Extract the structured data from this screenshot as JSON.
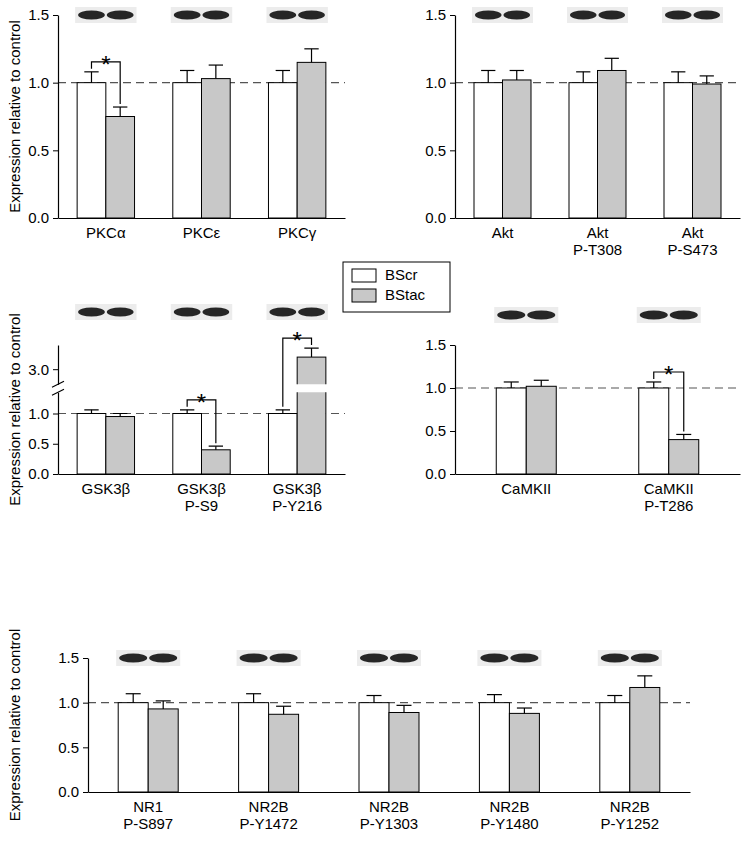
{
  "chart_data": [
    {
      "type": "bar",
      "y_label": "Expression relative to control",
      "categories": [
        "PKCα",
        "PKCε",
        "PKCγ"
      ],
      "series": [
        {
          "name": "BScr",
          "color": "#ffffff",
          "values": [
            1,
            1,
            1
          ],
          "errors": [
            0.08,
            0.09,
            0.09
          ]
        },
        {
          "name": "BStac",
          "color": "#c8c8c8",
          "values": [
            0.75,
            1.03,
            1.15
          ],
          "errors": [
            0.07,
            0.1,
            0.1
          ]
        }
      ],
      "ylim": [
        0,
        1.5
      ],
      "yticks": [
        {
          "value": 0,
          "label": "0.0"
        },
        {
          "value": 0.5,
          "label": "0.5"
        },
        {
          "value": 1,
          "label": "1.0"
        },
        {
          "value": 1.5,
          "label": "1.5"
        }
      ],
      "reference": 1,
      "significance": [
        {
          "category": 0,
          "label": "*"
        }
      ],
      "legend": "center"
    },
    {
      "type": "bar",
      "categories": [
        "Akt",
        "Akt\nP-T308",
        "Akt\nP-S473"
      ],
      "series": [
        {
          "name": "BScr",
          "color": "#ffffff",
          "values": [
            1,
            1,
            1
          ],
          "errors": [
            0.09,
            0.08,
            0.08
          ]
        },
        {
          "name": "BStac",
          "color": "#c8c8c8",
          "values": [
            1.02,
            1.09,
            0.99
          ],
          "errors": [
            0.07,
            0.09,
            0.06
          ]
        }
      ],
      "ylim": [
        0,
        1.5
      ],
      "yticks": [
        {
          "value": 0,
          "label": "0.0"
        },
        {
          "value": 0.5,
          "label": "0.5"
        },
        {
          "value": 1,
          "label": "1.0"
        },
        {
          "value": 1.5,
          "label": "1.5"
        }
      ],
      "reference": 1
    },
    {
      "type": "bar",
      "y_label": "Expression relative to control",
      "categories": [
        "GSK3β",
        "GSK3β\nP-S9",
        "GSK3β\nP-Y216"
      ],
      "series": [
        {
          "name": "BScr",
          "color": "#ffffff",
          "values": [
            1,
            1,
            1
          ],
          "errors": [
            0.06,
            0.06,
            0.06
          ]
        },
        {
          "name": "BStac",
          "color": "#c8c8c8",
          "values": [
            0.95,
            0.4,
            3.2
          ],
          "errors": [
            0.05,
            0.06,
            0.15
          ]
        }
      ],
      "ylim": [
        0,
        3.4
      ],
      "axis_break": [
        1.35,
        2.75
      ],
      "yticks": [
        {
          "value": 0,
          "label": "0.0"
        },
        {
          "value": 0.5,
          "label": "0.5"
        },
        {
          "value": 1,
          "label": "1.0"
        },
        {
          "value": 3,
          "label": "3.0"
        }
      ],
      "reference": 1,
      "significance": [
        {
          "category": 1,
          "label": "*"
        },
        {
          "category": 2,
          "label": "*"
        }
      ]
    },
    {
      "type": "bar",
      "categories": [
        "CaMKII",
        "CaMKII\nP-T286"
      ],
      "series": [
        {
          "name": "BScr",
          "color": "#ffffff",
          "values": [
            1,
            1
          ],
          "errors": [
            0.07,
            0.07
          ]
        },
        {
          "name": "BStac",
          "color": "#c8c8c8",
          "values": [
            1.02,
            0.4
          ],
          "errors": [
            0.07,
            0.06
          ]
        }
      ],
      "ylim": [
        0,
        1.5
      ],
      "yticks": [
        {
          "value": 0,
          "label": "0.0"
        },
        {
          "value": 0.5,
          "label": "0.5"
        },
        {
          "value": 1,
          "label": "1.0"
        },
        {
          "value": 1.5,
          "label": "1.5"
        }
      ],
      "reference": 1,
      "significance": [
        {
          "category": 1,
          "label": "*"
        }
      ]
    },
    {
      "type": "bar",
      "y_label": "Expression relative to control",
      "categories": [
        "NR1\nP-S897",
        "NR2B\nP-Y1472",
        "NR2B\nP-Y1303",
        "NR2B\nP-Y1480",
        "NR2B\nP-Y1252"
      ],
      "series": [
        {
          "name": "BScr",
          "color": "#ffffff",
          "values": [
            1,
            1,
            1,
            1,
            1
          ],
          "errors": [
            0.1,
            0.1,
            0.08,
            0.09,
            0.08
          ]
        },
        {
          "name": "BStac",
          "color": "#c8c8c8",
          "values": [
            0.93,
            0.87,
            0.89,
            0.88,
            1.17
          ],
          "errors": [
            0.09,
            0.09,
            0.08,
            0.06,
            0.13
          ]
        }
      ],
      "ylim": [
        0,
        1.5
      ],
      "yticks": [
        {
          "value": 0,
          "label": "0.0"
        },
        {
          "value": 0.5,
          "label": "0.5"
        },
        {
          "value": 1,
          "label": "1.0"
        },
        {
          "value": 1.5,
          "label": "1.5"
        }
      ],
      "reference": 1
    }
  ]
}
